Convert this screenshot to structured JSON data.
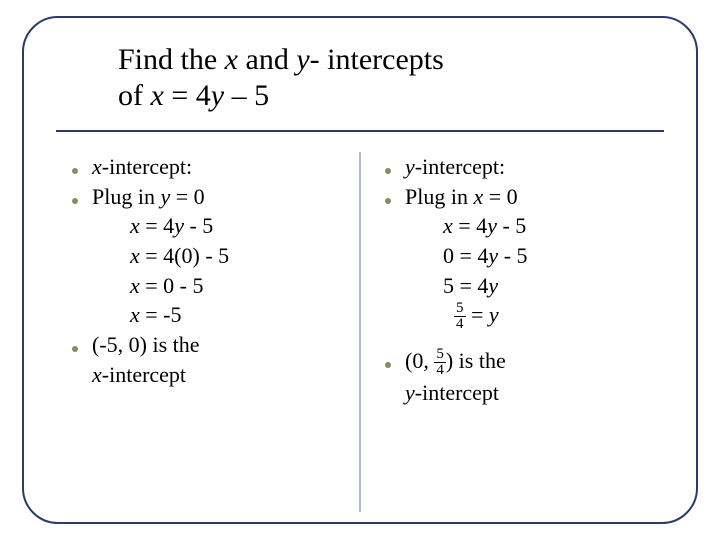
{
  "title": {
    "line1_a": "Find the ",
    "line1_x": "x",
    "line1_b": " and ",
    "line1_y": "y",
    "line1_c": "- intercepts",
    "line2_a": "of ",
    "line2_eq_x": "x",
    "line2_eq_mid": " = 4",
    "line2_eq_y": "y",
    "line2_eq_end": " – 5"
  },
  "left": {
    "b1_x": "x",
    "b1_rest": "-intercept:",
    "b2_a": "Plug in ",
    "b2_y": "y",
    "b2_b": " = 0",
    "step1_x": "x",
    "step1_mid": " = 4",
    "step1_y": "y",
    "step1_end": " - 5",
    "step2_x": "x",
    "step2_rest": " = 4(0) - 5",
    "step3_x": "x",
    "step3_rest": " = 0 - 5",
    "step4_x": "x",
    "step4_rest": " = -5",
    "b3a": "(-5, 0) is the",
    "b3b_x": "x",
    "b3b_rest": "-intercept"
  },
  "right": {
    "b1_y": "y",
    "b1_rest": "-intercept:",
    "b2_a": "Plug in ",
    "b2_x": "x",
    "b2_b": " = 0",
    "step1_x": "x",
    "step1_mid": " = 4",
    "step1_y": "y",
    "step1_end": " - 5",
    "step2_a": "0 = 4",
    "step2_y": "y",
    "step2_b": " - 5",
    "step3_a": "5 = 4",
    "step3_y": "y",
    "frac_num": "5",
    "frac_den": "4",
    "step4_eqy": " = ",
    "step4_y": "y",
    "b3_pre": "(0, ",
    "b3_num": "5",
    "b3_den": "4",
    "b3_post": ") is the",
    "b3b_y": "y",
    "b3b_rest": "-intercept"
  },
  "colors": {
    "frame": "#2a3b66",
    "bullet": "#7d925f",
    "text": "#000000",
    "background": "#ffffff"
  }
}
